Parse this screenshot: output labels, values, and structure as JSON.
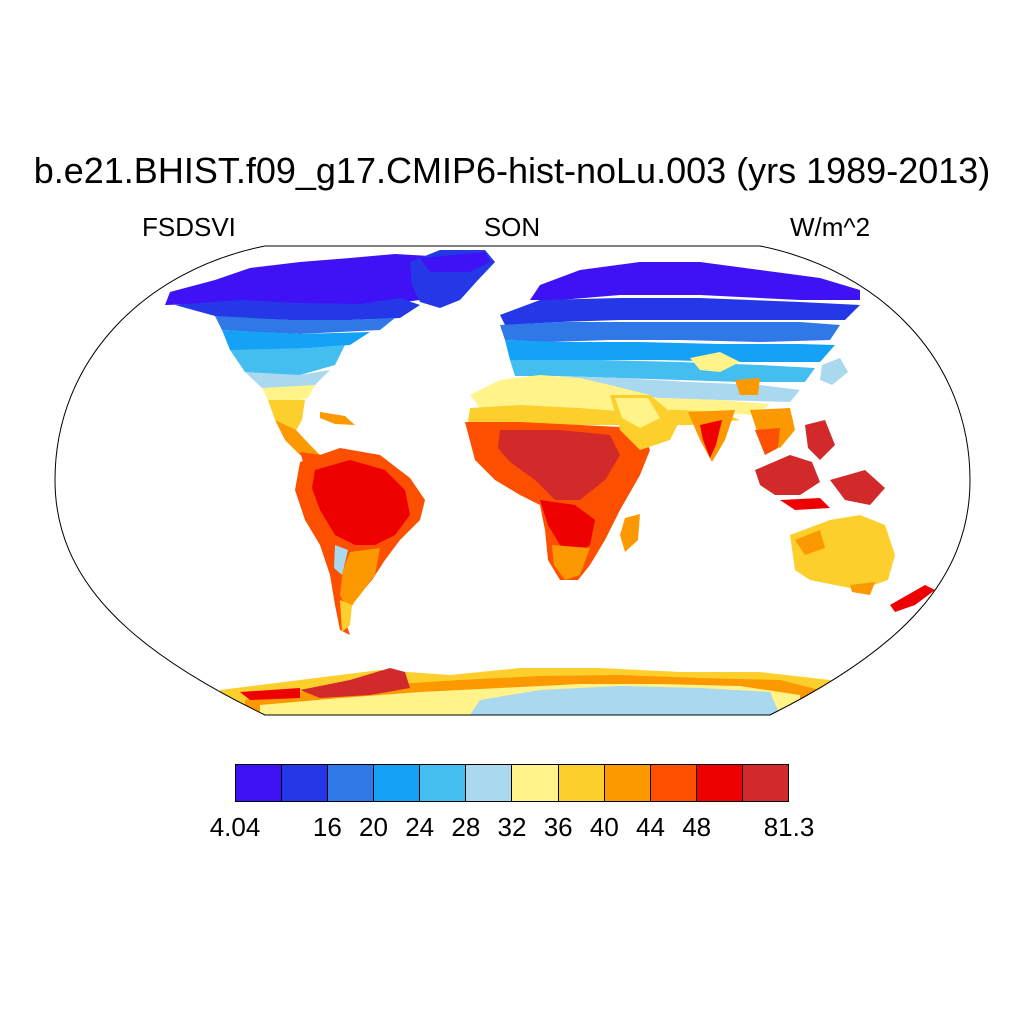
{
  "map": {
    "title": "b.e21.BHIST.f09_g17.CMIP6-hist-noLu.003 (yrs 1989-2013)",
    "left_label": "FSDSVI",
    "center_label": "SON",
    "right_label": "W/m^2",
    "projection": "Robinson",
    "variable": "FSDSVI",
    "season": "SON",
    "units": "W/m^2"
  },
  "colorbar": {
    "colors": [
      "#3f12f5",
      "#2438e8",
      "#3077e8",
      "#15a1f5",
      "#44bef1",
      "#a9d8ef",
      "#fff38a",
      "#fdcf2c",
      "#fc9800",
      "#fc5000",
      "#ee0000",
      "#d2292b"
    ],
    "labels": [
      "4.04",
      "",
      "16",
      "20",
      "24",
      "28",
      "32",
      "36",
      "40",
      "44",
      "48",
      "",
      "81.3"
    ]
  }
}
